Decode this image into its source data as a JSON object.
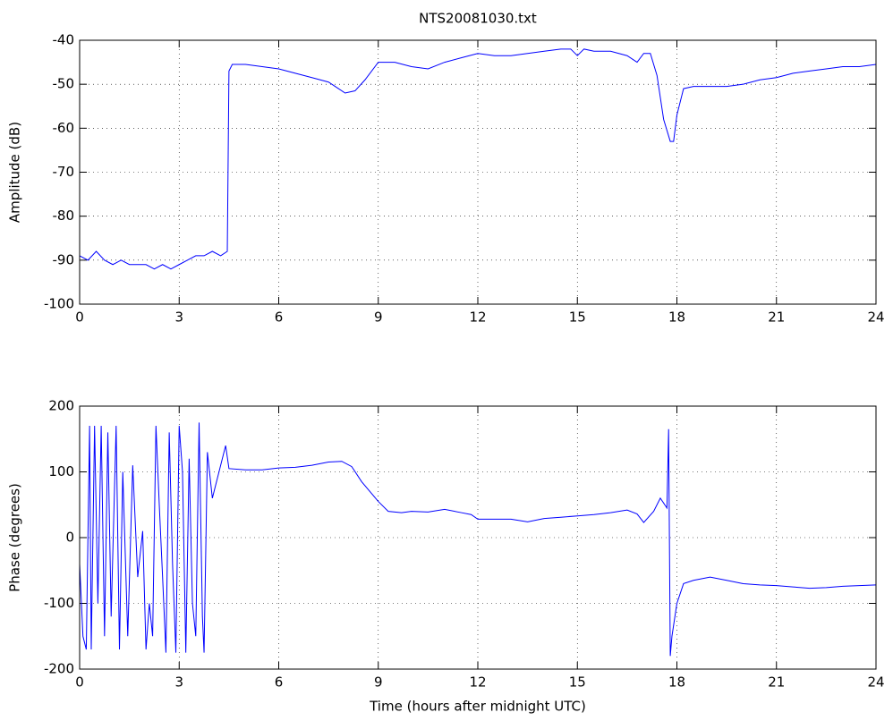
{
  "chart_data": [
    {
      "type": "line",
      "title": "NTS20081030.txt",
      "y_label": "Amplitude (dB)",
      "x": [
        0,
        0.25,
        0.5,
        0.75,
        1,
        1.25,
        1.5,
        1.75,
        2,
        2.25,
        2.5,
        2.75,
        3,
        3.25,
        3.5,
        3.75,
        4,
        4.25,
        4.45,
        4.5,
        4.6,
        5,
        5.5,
        6,
        6.5,
        7,
        7.5,
        7.8,
        8,
        8.3,
        8.6,
        9,
        9.5,
        10,
        10.5,
        11,
        11.5,
        12,
        12.5,
        13,
        13.5,
        14,
        14.5,
        14.8,
        15,
        15.2,
        15.5,
        16,
        16.5,
        16.8,
        17,
        17.2,
        17.4,
        17.6,
        17.8,
        17.9,
        18,
        18.2,
        18.5,
        19,
        19.5,
        20,
        20.5,
        21,
        21.5,
        22,
        22.5,
        23,
        23.5,
        24
      ],
      "series": [
        {
          "color": "#0000ff",
          "values": [
            -89,
            -90,
            -88,
            -90,
            -91,
            -90,
            -91,
            -91,
            -91,
            -92,
            -91,
            -92,
            -91,
            -90,
            -89,
            -89,
            -88,
            -89,
            -88,
            -47,
            -45.5,
            -45.5,
            -46,
            -46.5,
            -47.5,
            -48.5,
            -49.5,
            -51,
            -52,
            -51.5,
            -49,
            -45,
            -45,
            -46,
            -46.5,
            -45,
            -44,
            -43,
            -43.5,
            -43.5,
            -43,
            -42.5,
            -42,
            -42,
            -43.5,
            -42,
            -42.5,
            -42.5,
            -43.5,
            -45,
            -43,
            -43,
            -48,
            -58,
            -63,
            -63,
            -57,
            -51,
            -50.5,
            -50.5,
            -50.5,
            -50,
            -49,
            -48.5,
            -47.5,
            -47,
            -46.5,
            -46,
            -46,
            -45.5
          ]
        }
      ],
      "xlim": [
        0,
        24
      ],
      "xticks": [
        0,
        3,
        6,
        9,
        12,
        15,
        18,
        21,
        24
      ],
      "ylim": [
        -100,
        -40
      ],
      "yticks": [
        -100,
        -90,
        -80,
        -70,
        -60,
        -50,
        -40
      ],
      "grid": true
    },
    {
      "type": "line",
      "x_label": "Time (hours after midnight UTC)",
      "y_label": "Phase (degrees)",
      "x": [
        0,
        0.1,
        0.2,
        0.3,
        0.35,
        0.45,
        0.55,
        0.65,
        0.75,
        0.85,
        0.95,
        1.1,
        1.2,
        1.3,
        1.45,
        1.6,
        1.75,
        1.9,
        2.0,
        2.1,
        2.2,
        2.3,
        2.4,
        2.5,
        2.6,
        2.7,
        2.8,
        2.9,
        3.0,
        3.1,
        3.2,
        3.3,
        3.4,
        3.5,
        3.6,
        3.7,
        3.75,
        3.85,
        4.0,
        4.2,
        4.4,
        4.5,
        5,
        5.5,
        6,
        6.5,
        7,
        7.5,
        7.9,
        8.2,
        8.5,
        9,
        9.3,
        9.7,
        10,
        10.5,
        11,
        11.5,
        11.8,
        12,
        12.5,
        13,
        13.5,
        14,
        14.5,
        15,
        15.5,
        16,
        16.5,
        16.8,
        17,
        17.3,
        17.5,
        17.7,
        17.75,
        17.8,
        17.85,
        18,
        18.2,
        18.5,
        19,
        19.5,
        20,
        20.5,
        21,
        21.5,
        22,
        22.5,
        23,
        23.5,
        24
      ],
      "series": [
        {
          "color": "#0000ff",
          "values": [
            -40,
            -150,
            -170,
            170,
            -170,
            170,
            -100,
            170,
            -150,
            160,
            -120,
            170,
            -170,
            100,
            -150,
            110,
            -60,
            10,
            -170,
            -100,
            -150,
            170,
            50,
            -60,
            -175,
            160,
            -40,
            -175,
            170,
            100,
            -175,
            120,
            -100,
            -150,
            175,
            -120,
            -175,
            130,
            60,
            100,
            140,
            105,
            103,
            103,
            106,
            107,
            110,
            115,
            116,
            108,
            85,
            55,
            40,
            38,
            40,
            39,
            43,
            38,
            35,
            28,
            28,
            28,
            24,
            29,
            31,
            33,
            35,
            38,
            42,
            36,
            23,
            40,
            60,
            45,
            165,
            -180,
            -150,
            -100,
            -70,
            -65,
            -60,
            -65,
            -70,
            -72,
            -73,
            -75,
            -77,
            -76,
            -74,
            -73,
            -72
          ]
        }
      ],
      "xlim": [
        0,
        24
      ],
      "xticks": [
        0,
        3,
        6,
        9,
        12,
        15,
        18,
        21,
        24
      ],
      "ylim": [
        -200,
        200
      ],
      "yticks": [
        -200,
        -100,
        0,
        100,
        200
      ],
      "grid": true
    }
  ]
}
